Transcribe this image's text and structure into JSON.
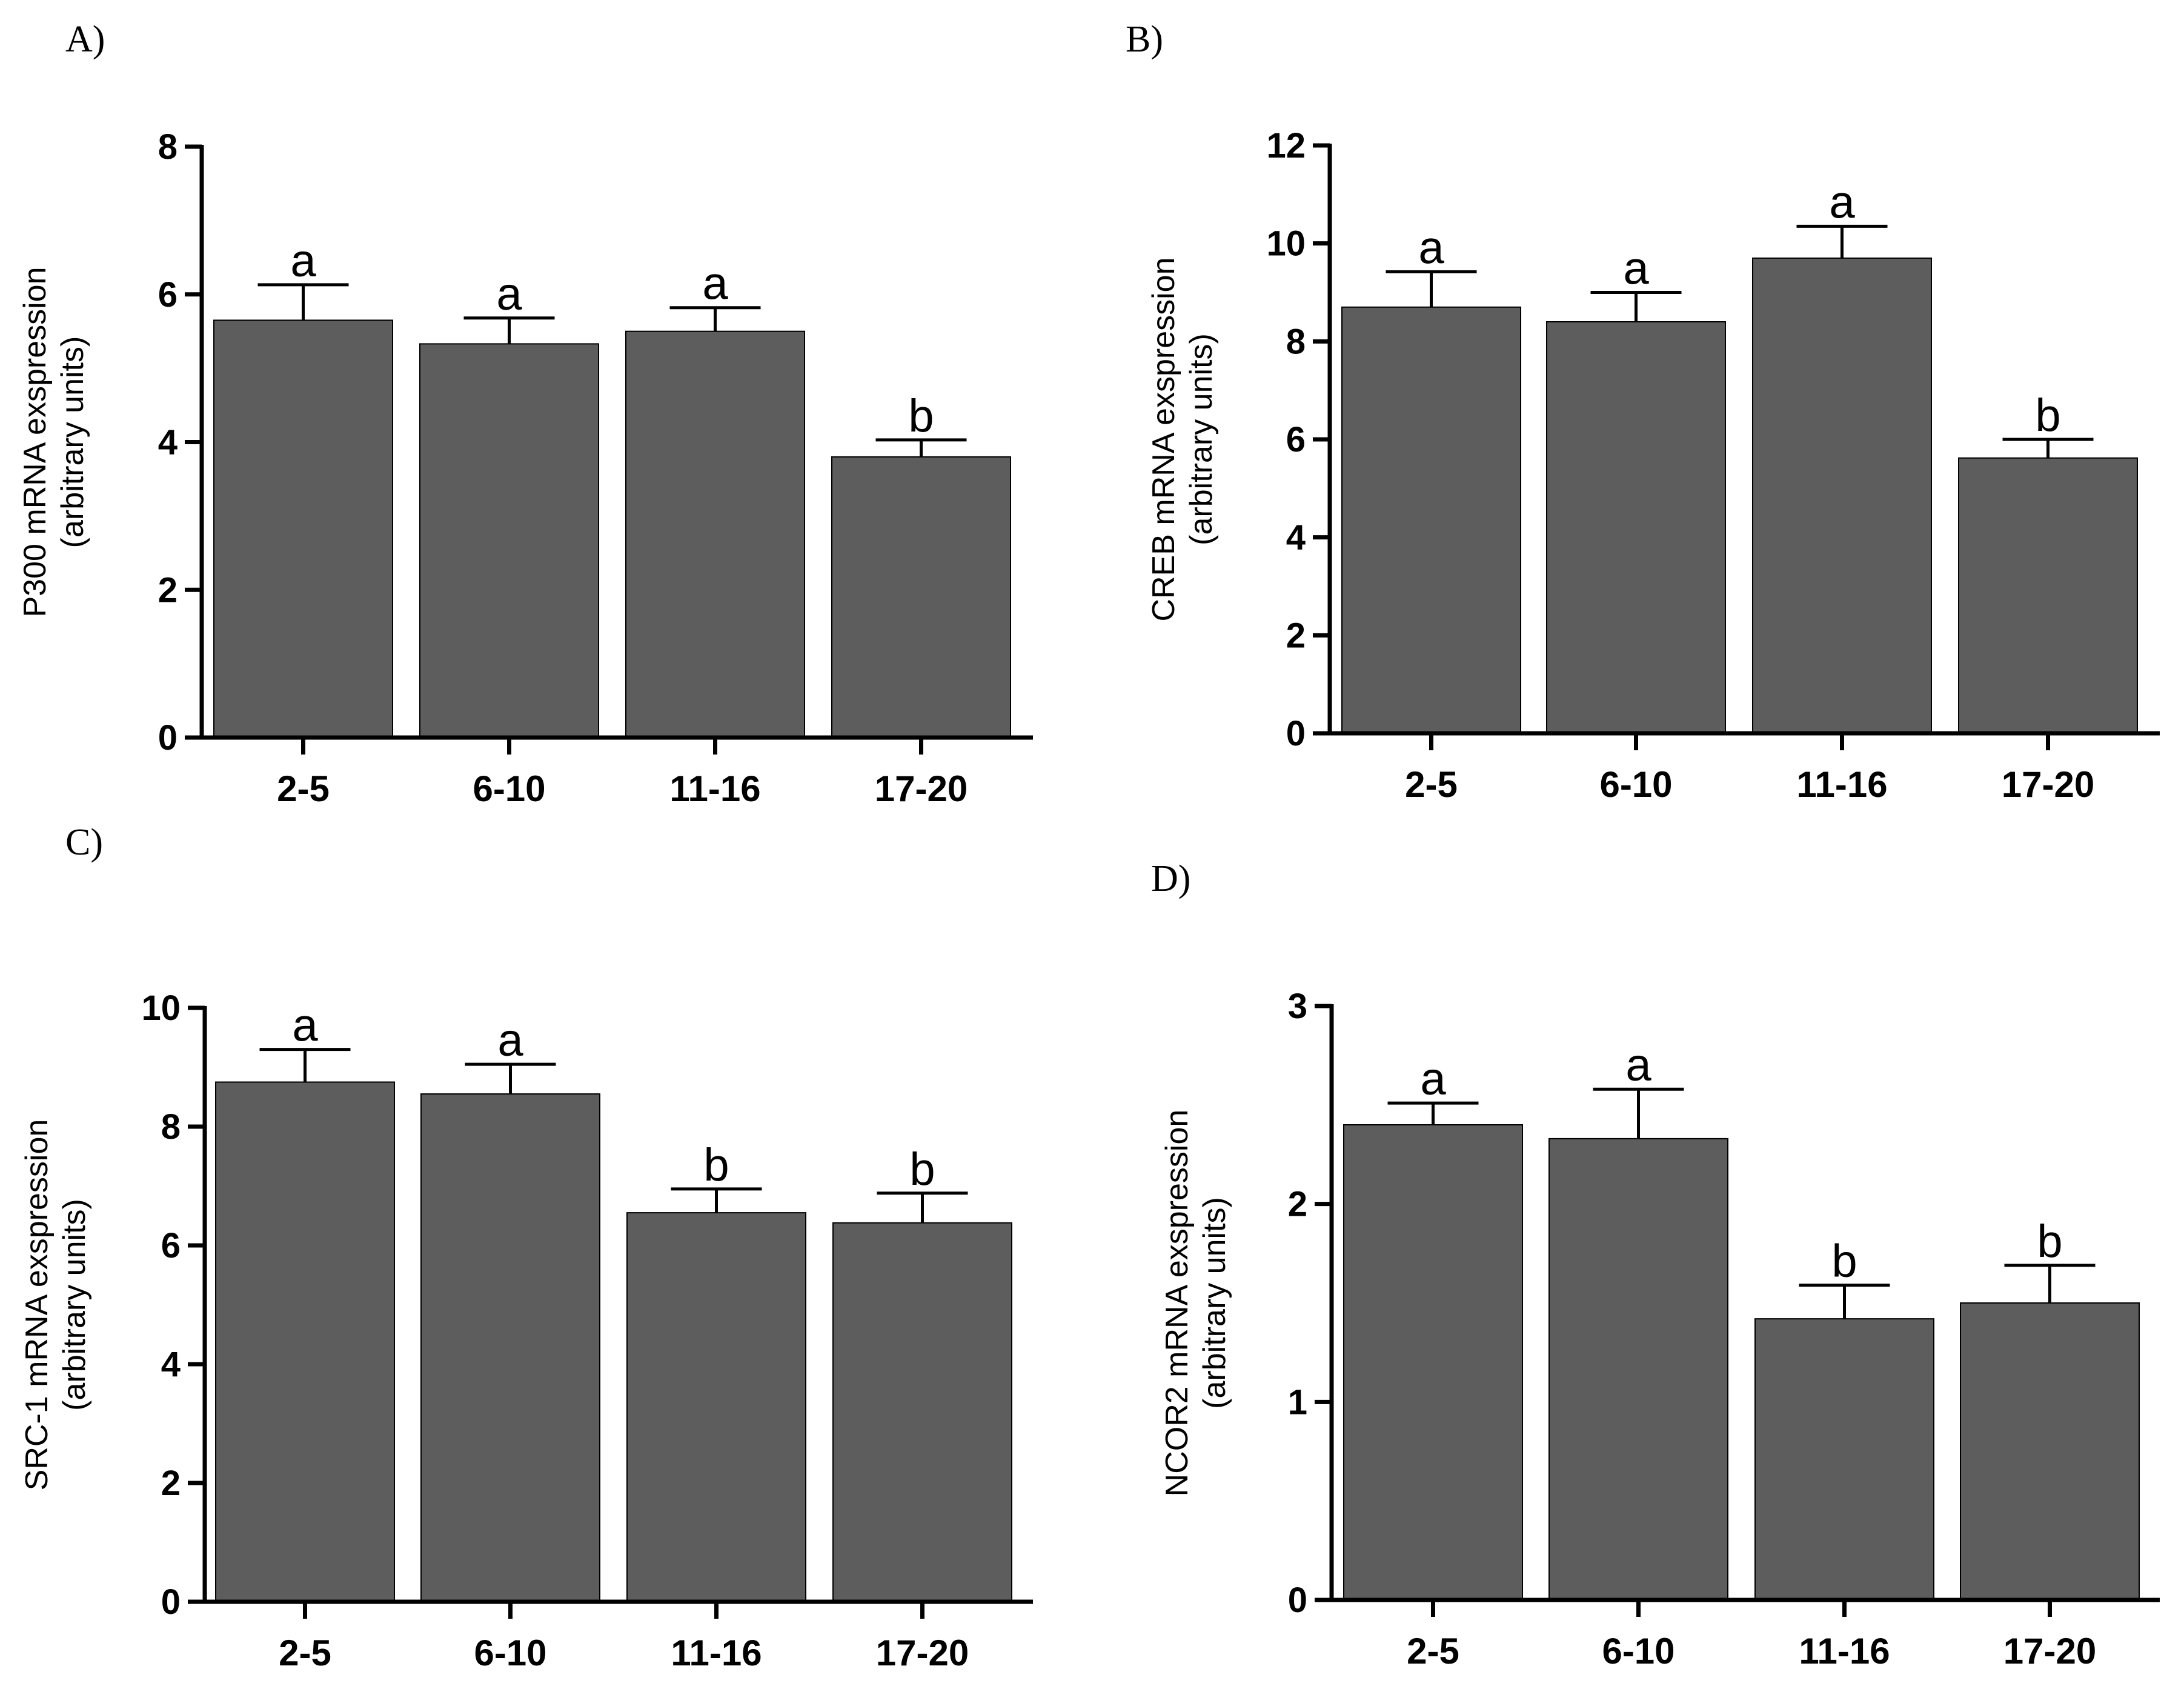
{
  "chart_data": [
    {
      "panel": "A)",
      "type": "bar",
      "categories": [
        "2-5",
        "6-10",
        "11-16",
        "17-20"
      ],
      "values": [
        5.65,
        5.33,
        5.5,
        3.8
      ],
      "errors": [
        0.48,
        0.35,
        0.32,
        0.23
      ],
      "significance": [
        "a",
        "a",
        "a",
        "b"
      ],
      "ylabel_line1": "P300 mRNA exspression",
      "ylabel_line2": "(arbitrary units)",
      "ylim": [
        0,
        8
      ],
      "yticks": [
        "0",
        "2",
        "4",
        "6",
        "8"
      ]
    },
    {
      "panel": "B)",
      "type": "bar",
      "categories": [
        "2-5",
        "6-10",
        "11-16",
        "17-20"
      ],
      "values": [
        8.7,
        8.4,
        9.7,
        5.62
      ],
      "errors": [
        0.72,
        0.6,
        0.65,
        0.38
      ],
      "significance": [
        "a",
        "a",
        "a",
        "b"
      ],
      "ylabel_line1": "CREB mRNA exspression",
      "ylabel_line2": "(arbitrary units)",
      "ylim": [
        0,
        12
      ],
      "yticks": [
        "0",
        "2",
        "4",
        "6",
        "8",
        "10",
        "12"
      ]
    },
    {
      "panel": "C)",
      "type": "bar",
      "categories": [
        "2-5",
        "6-10",
        "11-16",
        "17-20"
      ],
      "values": [
        8.75,
        8.55,
        6.55,
        6.38
      ],
      "errors": [
        0.55,
        0.5,
        0.4,
        0.5
      ],
      "significance": [
        "a",
        "a",
        "b",
        "b"
      ],
      "ylabel_line1": "SRC-1 mRNA exspression",
      "ylabel_line2": "(arbitrary units)",
      "ylim": [
        0,
        10
      ],
      "yticks": [
        "0",
        "2",
        "4",
        "6",
        "8",
        "10"
      ]
    },
    {
      "panel": "D)",
      "type": "bar",
      "categories": [
        "2-5",
        "6-10",
        "11-16",
        "17-20"
      ],
      "values": [
        2.4,
        2.33,
        1.42,
        1.5
      ],
      "errors": [
        0.11,
        0.25,
        0.17,
        0.19
      ],
      "significance": [
        "a",
        "a",
        "b",
        "b"
      ],
      "ylabel_line1": "NCOR2 mRNA exspression",
      "ylabel_line2": "(arbitrary units)",
      "ylim": [
        0,
        3
      ],
      "yticks": [
        "0",
        "1",
        "2",
        "3"
      ]
    }
  ]
}
